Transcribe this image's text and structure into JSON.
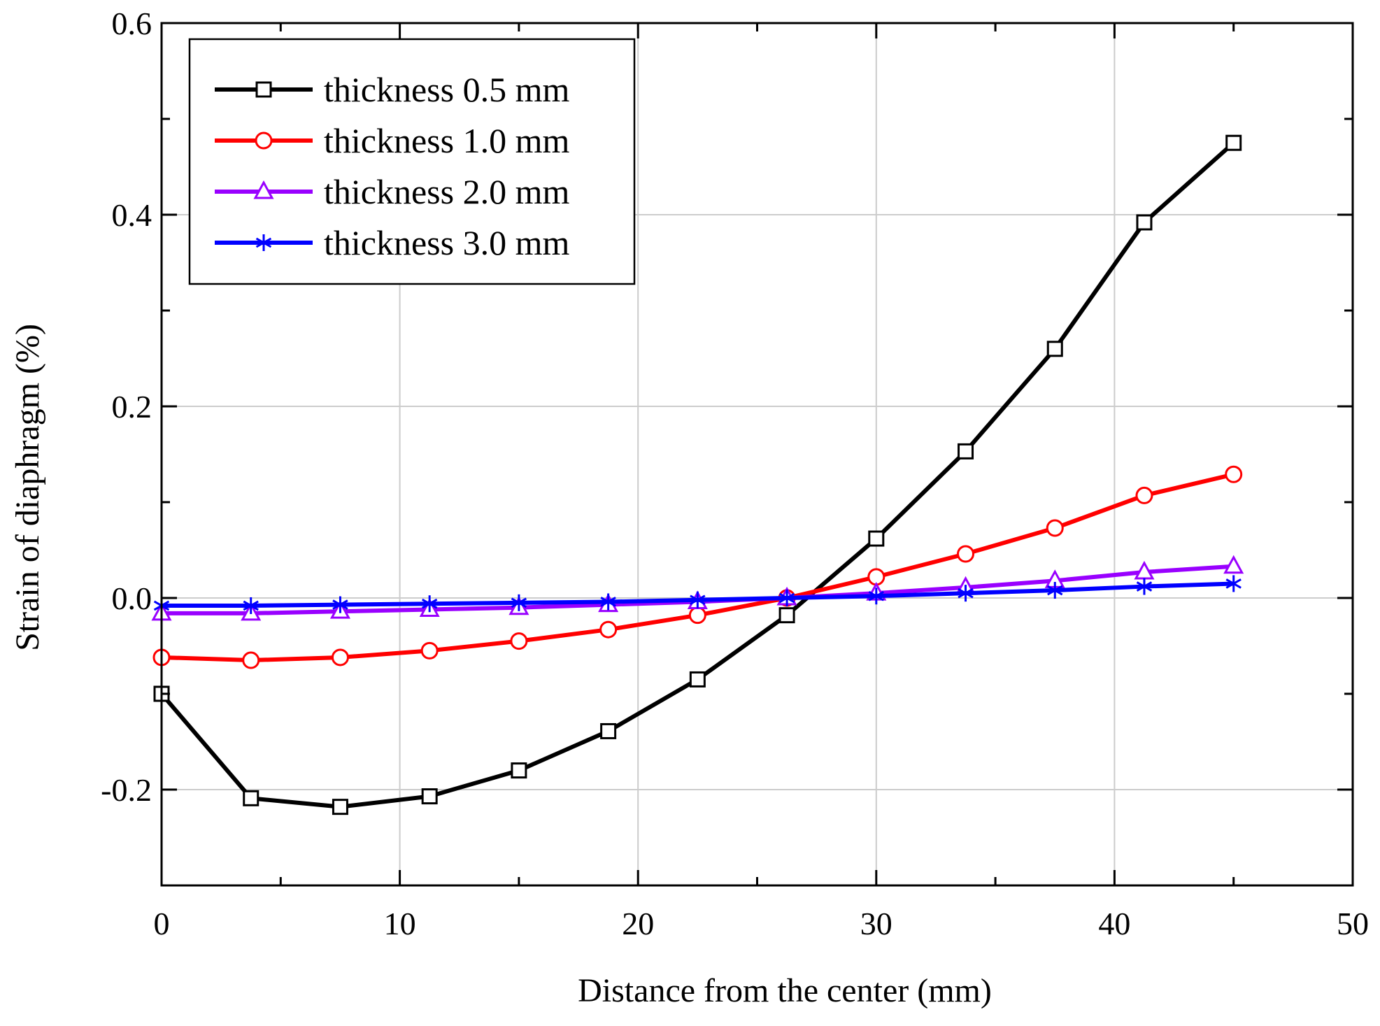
{
  "chart_data": {
    "type": "line",
    "title": "",
    "xlabel": "Distance from the center (mm)",
    "ylabel": "Strain of diaphragm (%)",
    "xlim": [
      0,
      50
    ],
    "ylim": [
      -0.3,
      0.6
    ],
    "xticks": [
      0,
      10,
      20,
      30,
      40,
      50
    ],
    "xtick_labels": [
      "0",
      "10",
      "20",
      "30",
      "40",
      "50"
    ],
    "yticks": [
      -0.2,
      0.0,
      0.2,
      0.4,
      0.6
    ],
    "ytick_labels": [
      "-0.2",
      "0.0",
      "0.2",
      "0.4",
      "0.6"
    ],
    "grid": true,
    "legend_position": "top-left",
    "x": [
      0,
      3.75,
      7.5,
      11.25,
      15,
      18.75,
      22.5,
      26.25,
      30,
      33.75,
      37.5,
      41.25,
      45
    ],
    "series": [
      {
        "name": "thickness 0.5 mm",
        "color": "#000000",
        "marker": "square",
        "values": [
          -0.1,
          -0.209,
          -0.218,
          -0.207,
          -0.18,
          -0.139,
          -0.085,
          -0.018,
          0.062,
          0.153,
          0.26,
          0.392,
          0.475
        ]
      },
      {
        "name": "thickness 1.0 mm",
        "color": "#ff0000",
        "marker": "circle",
        "values": [
          -0.062,
          -0.065,
          -0.062,
          -0.055,
          -0.045,
          -0.033,
          -0.018,
          0.0,
          0.022,
          0.046,
          0.073,
          0.107,
          0.129
        ]
      },
      {
        "name": "thickness 2.0 mm",
        "color": "#9900ff",
        "marker": "triangle",
        "values": [
          -0.016,
          -0.016,
          -0.014,
          -0.012,
          -0.01,
          -0.007,
          -0.004,
          0.0,
          0.005,
          0.011,
          0.018,
          0.027,
          0.033
        ]
      },
      {
        "name": "thickness 3.0 mm",
        "color": "#0000ff",
        "marker": "asterisk",
        "values": [
          -0.008,
          -0.008,
          -0.007,
          -0.006,
          -0.005,
          -0.004,
          -0.002,
          0.0,
          0.002,
          0.005,
          0.008,
          0.012,
          0.015
        ]
      }
    ]
  }
}
